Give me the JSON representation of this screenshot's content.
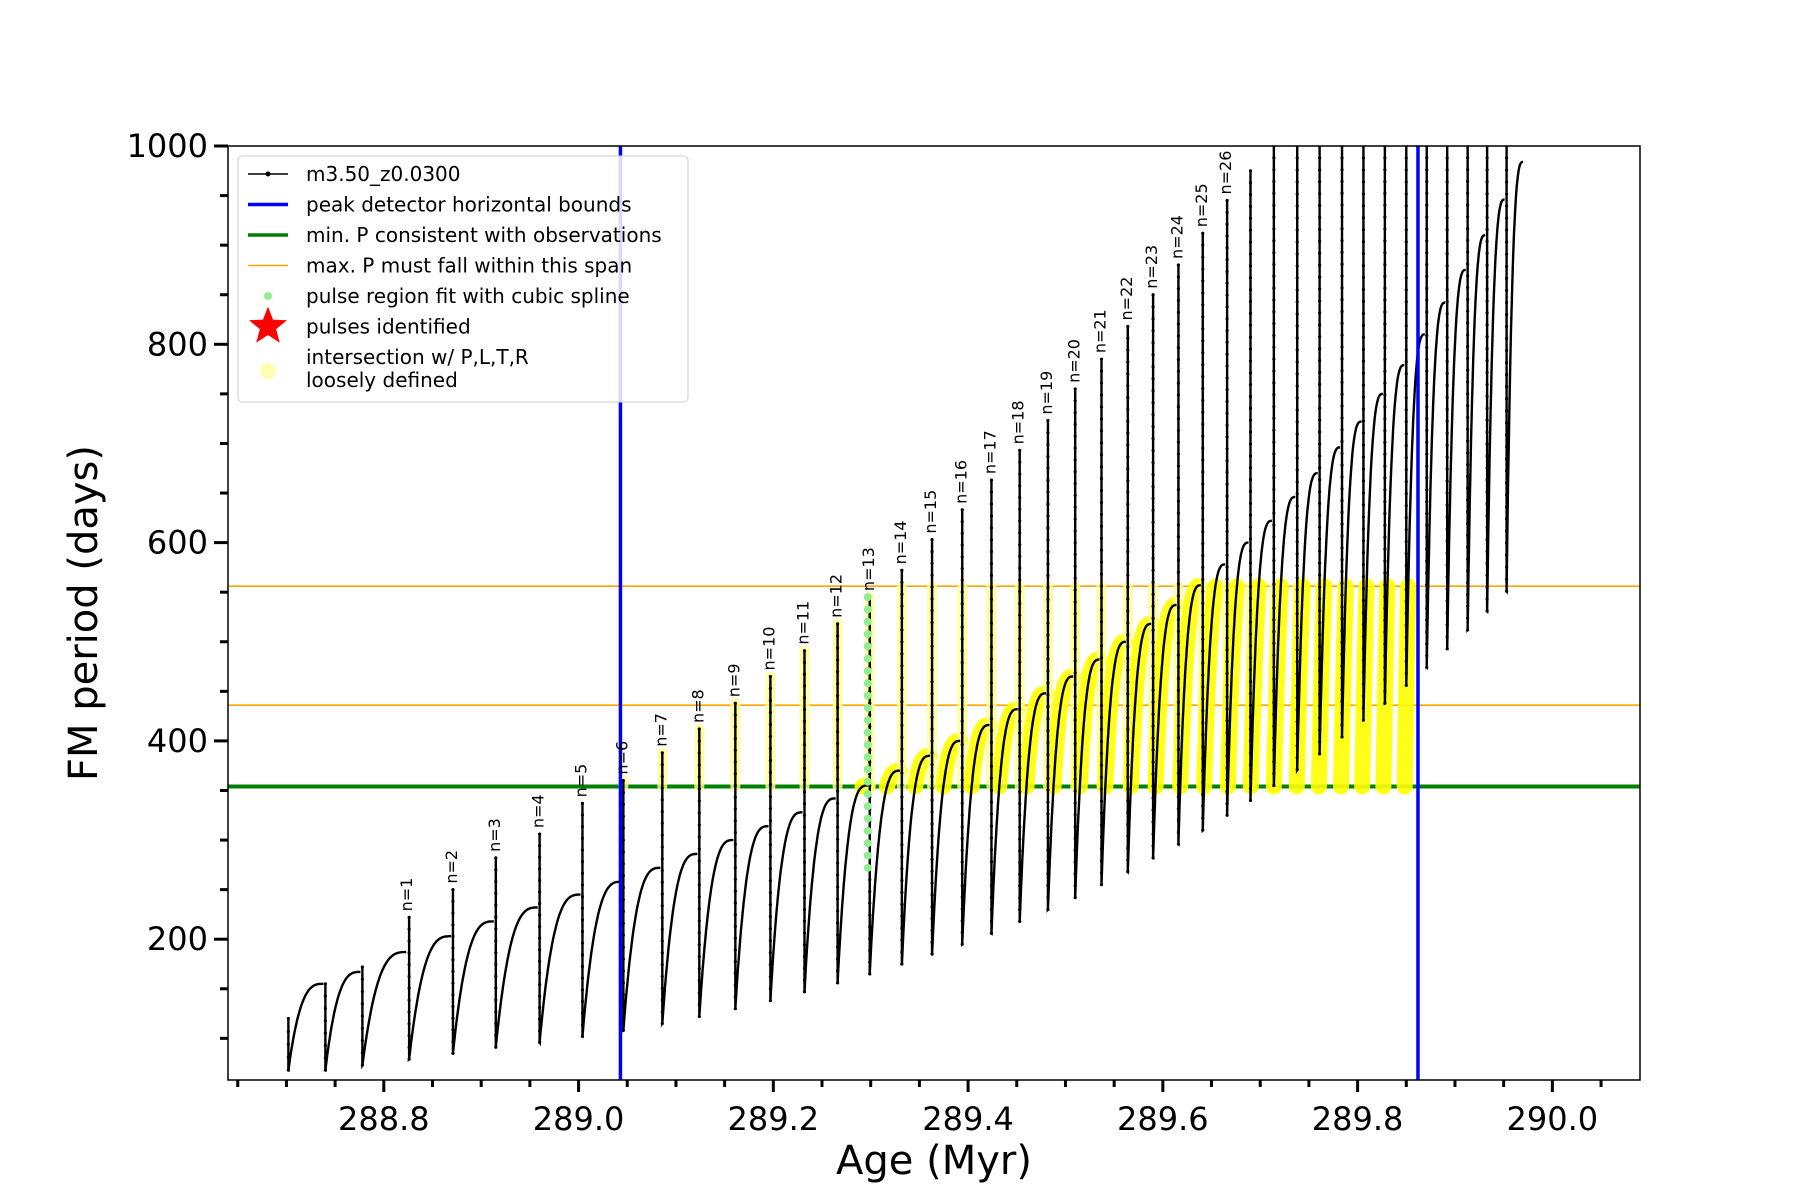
{
  "chart_data": {
    "type": "scatter",
    "xlabel": "Age (Myr)",
    "ylabel": "FM period (days)",
    "xlim": [
      288.64,
      290.09
    ],
    "ylim": [
      58,
      1000
    ],
    "x_ticks": [
      288.8,
      289.0,
      289.2,
      289.4,
      289.6,
      289.8,
      290.0
    ],
    "x_tick_labels": [
      "288.8",
      "289.0",
      "289.2",
      "289.4",
      "289.6",
      "289.8",
      "290.0"
    ],
    "y_ticks": [
      200,
      400,
      600,
      800,
      1000
    ],
    "y_tick_labels": [
      "200",
      "400",
      "600",
      "800",
      "1000"
    ],
    "y_minor_ticks": [
      100,
      150,
      250,
      300,
      350,
      450,
      500,
      550,
      650,
      700,
      750,
      850,
      900,
      950
    ],
    "x_minor_ticks": [
      288.65,
      288.7,
      288.75,
      288.85,
      288.9,
      288.95,
      289.05,
      289.1,
      289.15,
      289.25,
      289.3,
      289.35,
      289.45,
      289.5,
      289.55,
      289.65,
      289.7,
      289.75,
      289.85,
      289.9,
      289.95,
      290.05
    ],
    "grid": false,
    "legend_position": "top-left",
    "legend": [
      {
        "label": "m3.50_z0.0300",
        "marker": "line-dot",
        "color": "#000000"
      },
      {
        "label": "peak detector horizontal bounds",
        "marker": "line",
        "color": "#0000ff"
      },
      {
        "label": "min. P consistent with observations",
        "marker": "line",
        "color": "#008000"
      },
      {
        "label": "max. P must fall within this span",
        "marker": "thin-line",
        "color": "#ffa500"
      },
      {
        "label": "pulse region fit with cubic spline",
        "marker": "dot",
        "color": "#90ee90"
      },
      {
        "label": "pulses identified",
        "marker": "star",
        "color": "#ff0000"
      },
      {
        "label_lines": [
          "intersection w/ P,L,T,R",
          "loosely defined"
        ],
        "marker": "big-dot",
        "color": "#ffffb0"
      }
    ],
    "vertical_lines": [
      {
        "x": 289.043,
        "color": "#0000ff",
        "role": "peak detector horizontal bounds"
      },
      {
        "x": 289.862,
        "color": "#0000ff",
        "role": "peak detector horizontal bounds"
      }
    ],
    "horizontal_lines": [
      {
        "y": 354,
        "color": "#008000",
        "role": "min. P consistent with observations"
      },
      {
        "y": 436,
        "color": "#ffa500",
        "role": "max. P must fall within this span"
      },
      {
        "y": 556,
        "color": "#ffa500",
        "role": "max. P must fall within this span"
      }
    ],
    "pulse_cycles": [
      {
        "x_start": 288.702,
        "x_end": 288.738,
        "y_min": 68,
        "y_top": 155,
        "y_pre_min": 120
      },
      {
        "x_start": 288.74,
        "x_end": 288.776,
        "y_min": 68,
        "y_top": 167,
        "y_pre_min": 155
      },
      {
        "x_start": 288.778,
        "x_end": 288.823,
        "y_min": 73,
        "y_top": 187,
        "y_pre_min": 172
      },
      {
        "x_start": 288.826,
        "x_end": 288.869,
        "y_min": 79,
        "y_top": 203,
        "y_pre_min": 222
      },
      {
        "x_start": 288.871,
        "x_end": 288.913,
        "y_min": 85,
        "y_top": 218,
        "y_pre_min": 250
      },
      {
        "x_start": 288.915,
        "x_end": 288.958,
        "y_min": 91,
        "y_top": 232,
        "y_pre_min": 282
      },
      {
        "x_start": 288.96,
        "x_end": 289.002,
        "y_min": 96,
        "y_top": 245,
        "y_pre_min": 306
      },
      {
        "x_start": 289.004,
        "x_end": 289.044,
        "y_min": 102,
        "y_top": 258,
        "y_pre_min": 337
      },
      {
        "x_start": 289.046,
        "x_end": 289.084,
        "y_min": 108,
        "y_top": 272,
        "y_pre_min": 360
      },
      {
        "x_start": 289.086,
        "x_end": 289.122,
        "y_min": 115,
        "y_top": 286,
        "y_pre_min": 388
      },
      {
        "x_start": 289.124,
        "x_end": 289.159,
        "y_min": 122,
        "y_top": 300,
        "y_pre_min": 412
      },
      {
        "x_start": 289.161,
        "x_end": 289.195,
        "y_min": 130,
        "y_top": 314,
        "y_pre_min": 438
      },
      {
        "x_start": 289.197,
        "x_end": 289.23,
        "y_min": 138,
        "y_top": 328,
        "y_pre_min": 465
      },
      {
        "x_start": 289.232,
        "x_end": 289.264,
        "y_min": 147,
        "y_top": 342,
        "y_pre_min": 491
      },
      {
        "x_start": 289.266,
        "x_end": 289.297,
        "y_min": 156,
        "y_top": 355,
        "y_pre_min": 518
      },
      {
        "x_start": 289.299,
        "x_end": 289.33,
        "y_min": 165,
        "y_top": 370,
        "y_pre_min": 545
      },
      {
        "x_start": 289.332,
        "x_end": 289.361,
        "y_min": 175,
        "y_top": 385,
        "y_pre_min": 572
      },
      {
        "x_start": 289.363,
        "x_end": 289.392,
        "y_min": 185,
        "y_top": 400,
        "y_pre_min": 603
      },
      {
        "x_start": 289.394,
        "x_end": 289.422,
        "y_min": 195,
        "y_top": 416,
        "y_pre_min": 633
      },
      {
        "x_start": 289.424,
        "x_end": 289.451,
        "y_min": 206,
        "y_top": 432,
        "y_pre_min": 663
      },
      {
        "x_start": 289.453,
        "x_end": 289.48,
        "y_min": 218,
        "y_top": 448,
        "y_pre_min": 693
      },
      {
        "x_start": 289.482,
        "x_end": 289.508,
        "y_min": 230,
        "y_top": 465,
        "y_pre_min": 723
      },
      {
        "x_start": 289.51,
        "x_end": 289.535,
        "y_min": 242,
        "y_top": 482,
        "y_pre_min": 755
      },
      {
        "x_start": 289.537,
        "x_end": 289.562,
        "y_min": 255,
        "y_top": 500,
        "y_pre_min": 785
      },
      {
        "x_start": 289.564,
        "x_end": 289.588,
        "y_min": 268,
        "y_top": 518,
        "y_pre_min": 818
      },
      {
        "x_start": 289.59,
        "x_end": 289.614,
        "y_min": 282,
        "y_top": 537,
        "y_pre_min": 850
      },
      {
        "x_start": 289.616,
        "x_end": 289.639,
        "y_min": 296,
        "y_top": 557,
        "y_pre_min": 880
      },
      {
        "x_start": 289.641,
        "x_end": 289.664,
        "y_min": 310,
        "y_top": 578,
        "y_pre_min": 912
      },
      {
        "x_start": 289.666,
        "x_end": 289.688,
        "y_min": 325,
        "y_top": 600,
        "y_pre_min": 945
      },
      {
        "x_start": 289.69,
        "x_end": 289.712,
        "y_min": 340,
        "y_top": 622,
        "y_pre_min": 975
      },
      {
        "x_start": 289.714,
        "x_end": 289.736,
        "y_min": 355,
        "y_top": 646,
        "y_pre_min": 1000
      },
      {
        "x_start": 289.738,
        "x_end": 289.759,
        "y_min": 371,
        "y_top": 670,
        "y_pre_min": 1000
      },
      {
        "x_start": 289.761,
        "x_end": 289.782,
        "y_min": 387,
        "y_top": 696,
        "y_pre_min": 1000
      },
      {
        "x_start": 289.784,
        "x_end": 289.804,
        "y_min": 404,
        "y_top": 722,
        "y_pre_min": 1000
      },
      {
        "x_start": 289.806,
        "x_end": 289.826,
        "y_min": 421,
        "y_top": 750,
        "y_pre_min": 1000
      },
      {
        "x_start": 289.828,
        "x_end": 289.848,
        "y_min": 438,
        "y_top": 779,
        "y_pre_min": 1000
      },
      {
        "x_start": 289.85,
        "x_end": 289.869,
        "y_min": 456,
        "y_top": 810,
        "y_pre_min": 1000
      },
      {
        "x_start": 289.871,
        "x_end": 289.89,
        "y_min": 474,
        "y_top": 842,
        "y_pre_min": 1000
      },
      {
        "x_start": 289.892,
        "x_end": 289.911,
        "y_min": 493,
        "y_top": 875,
        "y_pre_min": 1000
      },
      {
        "x_start": 289.913,
        "x_end": 289.931,
        "y_min": 512,
        "y_top": 910,
        "y_pre_min": 1000
      },
      {
        "x_start": 289.933,
        "x_end": 289.951,
        "y_min": 531,
        "y_top": 946,
        "y_pre_min": 1000
      },
      {
        "x_start": 289.953,
        "x_end": 289.97,
        "y_min": 551,
        "y_top": 984,
        "y_pre_min": 1000
      }
    ],
    "pulse_labels": [
      {
        "text": "n=1",
        "x": 288.823,
        "y": 222
      },
      {
        "text": "n=2",
        "x": 288.869,
        "y": 250
      },
      {
        "text": "n=3",
        "x": 288.913,
        "y": 282
      },
      {
        "text": "n=4",
        "x": 288.958,
        "y": 306
      },
      {
        "text": "n=5",
        "x": 289.002,
        "y": 337
      },
      {
        "text": "n=6",
        "x": 289.044,
        "y": 360
      },
      {
        "text": "n=7",
        "x": 289.084,
        "y": 388
      },
      {
        "text": "n=8",
        "x": 289.122,
        "y": 412
      },
      {
        "text": "n=9",
        "x": 289.159,
        "y": 438
      },
      {
        "text": "n=10",
        "x": 289.195,
        "y": 465
      },
      {
        "text": "n=11",
        "x": 289.23,
        "y": 491
      },
      {
        "text": "n=12",
        "x": 289.264,
        "y": 518
      },
      {
        "text": "n=13",
        "x": 289.297,
        "y": 545
      },
      {
        "text": "n=14",
        "x": 289.33,
        "y": 572
      },
      {
        "text": "n=15",
        "x": 289.361,
        "y": 603
      },
      {
        "text": "n=16",
        "x": 289.392,
        "y": 633
      },
      {
        "text": "n=17",
        "x": 289.422,
        "y": 663
      },
      {
        "text": "n=18",
        "x": 289.451,
        "y": 693
      },
      {
        "text": "n=19",
        "x": 289.48,
        "y": 723
      },
      {
        "text": "n=20",
        "x": 289.508,
        "y": 755
      },
      {
        "text": "n=21",
        "x": 289.535,
        "y": 785
      },
      {
        "text": "n=22",
        "x": 289.562,
        "y": 818
      },
      {
        "text": "n=23",
        "x": 289.588,
        "y": 850
      },
      {
        "text": "n=24",
        "x": 289.614,
        "y": 880
      },
      {
        "text": "n=25",
        "x": 289.639,
        "y": 912
      },
      {
        "text": "n=26",
        "x": 289.664,
        "y": 945
      }
    ],
    "spline_region": {
      "x": 289.297,
      "y_range": [
        272,
        545
      ]
    }
  }
}
